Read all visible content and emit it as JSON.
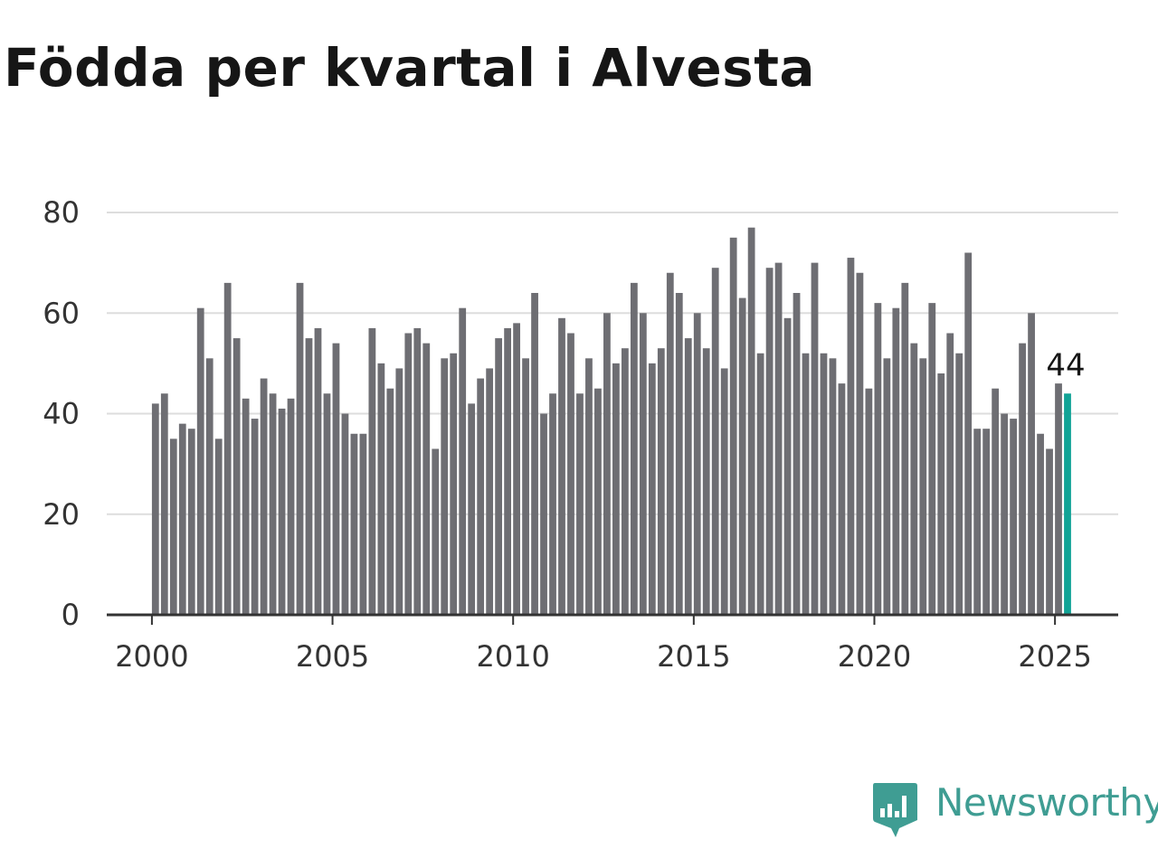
{
  "title": "Födda per kvartal i Alvesta",
  "brand": {
    "name": "Newsworthy",
    "icon": "bar-chart-speech-icon",
    "color": "#3f9d93"
  },
  "colors": {
    "bar": "#6e6e73",
    "highlight": "#11a396",
    "grid": "#dddddd",
    "axis": "#333333"
  },
  "chart_data": {
    "type": "bar",
    "title": "Födda per kvartal i Alvesta",
    "xlabel": "",
    "ylabel": "",
    "ylim": [
      0,
      80
    ],
    "xlim": [
      1998.75,
      2026.75
    ],
    "y_ticks": [
      0,
      20,
      40,
      60,
      80
    ],
    "x_ticks": [
      2000,
      2005,
      2010,
      2015,
      2020,
      2025
    ],
    "x_tick_labels": [
      "2000",
      "2005",
      "2010",
      "2015",
      "2020",
      "2025"
    ],
    "y_tick_labels": [
      "0",
      "20",
      "40",
      "60",
      "80"
    ],
    "grid": "horizontal",
    "legend": "none",
    "start_year": 2000,
    "values": [
      42,
      44,
      35,
      38,
      37,
      61,
      51,
      35,
      66,
      55,
      43,
      39,
      47,
      44,
      41,
      43,
      66,
      55,
      57,
      44,
      54,
      40,
      36,
      36,
      57,
      50,
      45,
      49,
      56,
      57,
      54,
      33,
      51,
      52,
      61,
      42,
      47,
      49,
      55,
      57,
      58,
      51,
      64,
      40,
      44,
      59,
      56,
      44,
      51,
      45,
      60,
      50,
      53,
      66,
      60,
      50,
      53,
      68,
      64,
      55,
      60,
      53,
      69,
      49,
      75,
      63,
      77,
      52,
      69,
      70,
      59,
      64,
      52,
      70,
      52,
      51,
      46,
      71,
      68,
      45,
      62,
      51,
      61,
      66,
      54,
      51,
      62,
      48,
      56,
      52,
      72,
      37,
      37,
      45,
      40,
      39,
      54,
      60,
      36,
      33,
      46,
      44
    ],
    "highlight_last": true,
    "annotation": {
      "label": "44"
    }
  }
}
